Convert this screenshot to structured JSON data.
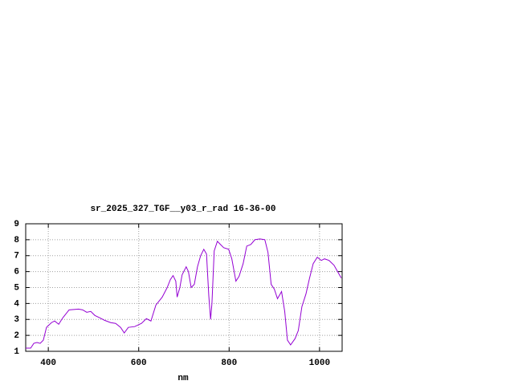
{
  "chart_data": {
    "type": "line",
    "title": "sr_2025_327_TGF__y03_r_rad 16-36-00",
    "x_label": "nm",
    "x": [
      350,
      361,
      368,
      375,
      382,
      389,
      396,
      407,
      414,
      423,
      432,
      446,
      467,
      476,
      485,
      494,
      503,
      514,
      524,
      538,
      549,
      560,
      568,
      577,
      591,
      606,
      617,
      627,
      638,
      652,
      663,
      670,
      676,
      682,
      685,
      691,
      696,
      705,
      710,
      716,
      723,
      730,
      737,
      744,
      750,
      755,
      759,
      762,
      767,
      774,
      781,
      788,
      799,
      806,
      815,
      822,
      831,
      839,
      848,
      857,
      868,
      879,
      886,
      893,
      900,
      907,
      916,
      923,
      929,
      936,
      946,
      953,
      961,
      970,
      978,
      986,
      995,
      1004,
      1011,
      1021,
      1032,
      1042,
      1048
    ],
    "series": [
      {
        "color": "#9400d3",
        "values": [
          1.2,
          1.2,
          1.5,
          1.55,
          1.5,
          1.7,
          2.5,
          2.8,
          2.9,
          2.7,
          3.1,
          3.6,
          3.65,
          3.6,
          3.45,
          3.5,
          3.25,
          3.1,
          2.95,
          2.8,
          2.75,
          2.5,
          2.15,
          2.5,
          2.55,
          2.75,
          3.05,
          2.9,
          3.9,
          4.4,
          5.0,
          5.5,
          5.75,
          5.4,
          4.4,
          5.0,
          5.8,
          6.3,
          6.0,
          5.0,
          5.2,
          6.3,
          7.0,
          7.4,
          7.1,
          4.5,
          3.0,
          4.0,
          7.3,
          7.9,
          7.7,
          7.5,
          7.4,
          6.8,
          5.4,
          5.7,
          6.5,
          7.6,
          7.7,
          8.0,
          8.05,
          8.0,
          7.2,
          5.2,
          4.9,
          4.3,
          4.75,
          3.5,
          1.7,
          1.4,
          1.8,
          2.3,
          3.8,
          4.6,
          5.6,
          6.5,
          6.9,
          6.7,
          6.8,
          6.7,
          6.4,
          5.9,
          5.6
        ]
      }
    ],
    "xlim": [
      350,
      1050
    ],
    "ylim": [
      1,
      9
    ],
    "xticks": [
      400,
      600,
      800,
      1000
    ],
    "yticks": [
      1,
      2,
      3,
      4,
      5,
      6,
      7,
      8,
      9
    ],
    "grid": true
  }
}
